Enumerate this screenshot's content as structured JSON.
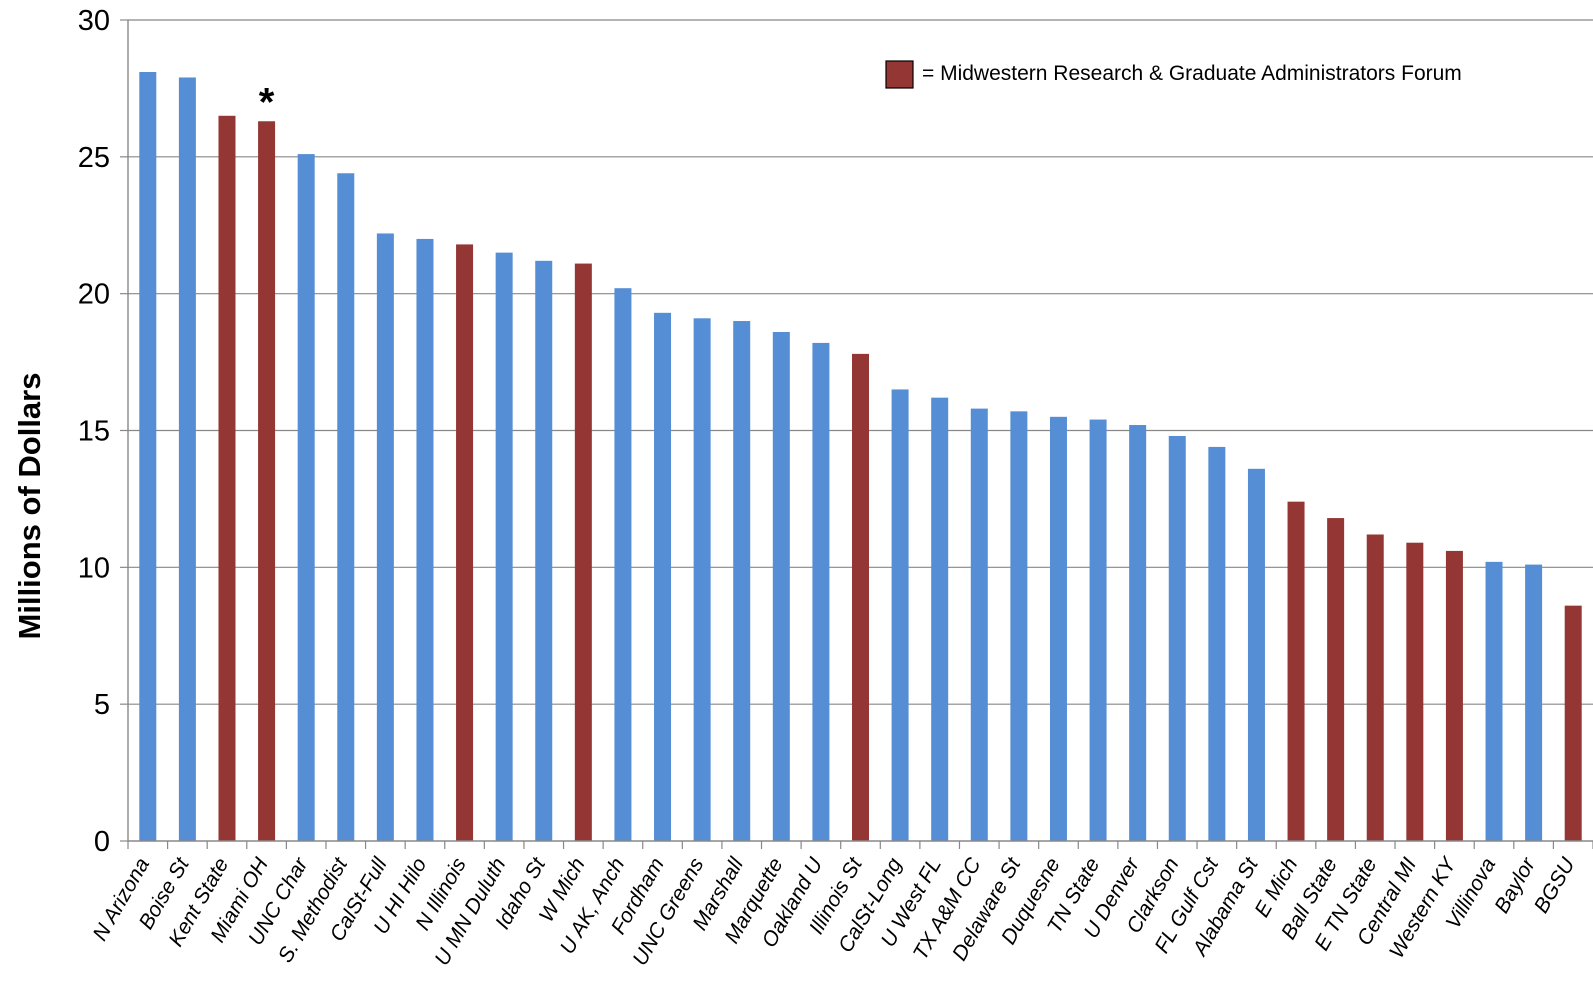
{
  "chart_data": {
    "type": "bar",
    "ylabel": "Millions of Dollars",
    "ylim": [
      0,
      30
    ],
    "yticks": [
      0,
      5,
      10,
      15,
      20,
      25,
      30
    ],
    "grid": true,
    "legend": {
      "position": "top-right",
      "label": "= Midwestern Research & Graduate Administrators Forum",
      "color": "#943634"
    },
    "colors": {
      "default": "#558ED5",
      "highlight": "#943634"
    },
    "annotation": {
      "text": "*",
      "category": "Miami OH"
    },
    "categories": [
      "N Arizona",
      "Boise St",
      "Kent State",
      "Miami OH",
      "UNC Char",
      "S. Methodist",
      "CalSt-Full",
      "U HI Hilo",
      "N Illinois",
      "U MN Duluth",
      "Idaho St",
      "W Mich",
      "U AK, Anch",
      "Fordham",
      "UNC Greens",
      "Marshall",
      "Marquette",
      "Oakland U",
      "Illinois St",
      "CalSt-Long",
      "U West FL",
      "TX A&M CC",
      "Delaware St",
      "Duquesne",
      "TN State",
      "U Denver",
      "Clarkson",
      "FL Gulf Cst",
      "Alabama St",
      "E Mich",
      "Ball State",
      "E TN State",
      "Central MI",
      "Western KY",
      "Villinova",
      "Baylor",
      "BGSU"
    ],
    "values": [
      28.1,
      27.9,
      26.5,
      26.3,
      25.1,
      24.4,
      22.2,
      22.0,
      21.8,
      21.5,
      21.2,
      21.1,
      20.2,
      19.3,
      19.1,
      19.0,
      18.6,
      18.2,
      17.8,
      16.5,
      16.2,
      15.8,
      15.7,
      15.5,
      15.4,
      15.2,
      14.8,
      14.4,
      13.6,
      12.4,
      11.8,
      11.2,
      10.9,
      10.6,
      10.2,
      10.1,
      8.6
    ],
    "highlighted": [
      false,
      false,
      true,
      true,
      false,
      false,
      false,
      false,
      true,
      false,
      false,
      true,
      false,
      false,
      false,
      false,
      false,
      false,
      true,
      false,
      false,
      false,
      false,
      false,
      false,
      false,
      false,
      false,
      false,
      true,
      true,
      true,
      true,
      true,
      false,
      false,
      true
    ]
  }
}
